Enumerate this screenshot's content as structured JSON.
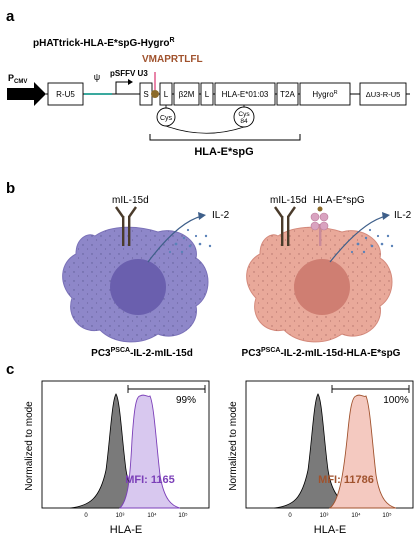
{
  "panels": {
    "a": {
      "letter": "a",
      "construct_title": "pHATtrick-HLA-E*spG-Hygro",
      "construct_title_sup": "R",
      "promoter": "P",
      "promoter_sub": "CMV",
      "psi": "ψ",
      "sffv": "pSFFV U3",
      "peptide": "VMAPRTLFL",
      "boxes": [
        "R-U5",
        "S",
        "L",
        "β2M",
        "L",
        "HLA-E*01:03",
        "T2A",
        "Hygro",
        "ΔU3-R-U5"
      ],
      "hygro_sup": "R",
      "cys1": "Cys",
      "cys2_line1": "Cys",
      "cys2_line2": "84",
      "bracket_label": "HLA-E*spG",
      "colors": {
        "peptide": "#a0522d",
        "brown_dot": "#8b6a2a"
      }
    },
    "b": {
      "letter": "b",
      "left_membrane": "mIL-15d",
      "left_secreted": "IL-2",
      "right_membrane": "mIL-15d",
      "right_complex": "HLA-E*spG",
      "right_secreted": "IL-2",
      "left_cell_label_pre": "PC3",
      "left_cell_label_sup": "PSCA",
      "left_cell_label_post": "-IL-2-mIL-15d",
      "right_cell_label_pre": "PC3",
      "right_cell_label_sup": "PSCA",
      "right_cell_label_post": "-IL-2-mIL-15d-HLA-E*spG",
      "colors": {
        "left_cell": "#8e87c9",
        "left_nucleus": "#6a5fae",
        "right_cell": "#e9a99a",
        "right_nucleus": "#cf7e72",
        "arrow": "#3e5f8a"
      }
    },
    "c": {
      "letter": "c",
      "left": {
        "ylabel": "Normalized to mode",
        "xlabel": "HLA-E",
        "percent": "99%",
        "mfi": "MFI: 1165",
        "color": "#7b3fb8"
      },
      "right": {
        "ylabel": "Normalized to mode",
        "xlabel": "HLA-E",
        "percent": "100%",
        "mfi": "MFI: 11786",
        "color": "#a0522d"
      },
      "ticks": [
        "0",
        "10³",
        "10⁴",
        "10⁵"
      ]
    }
  }
}
